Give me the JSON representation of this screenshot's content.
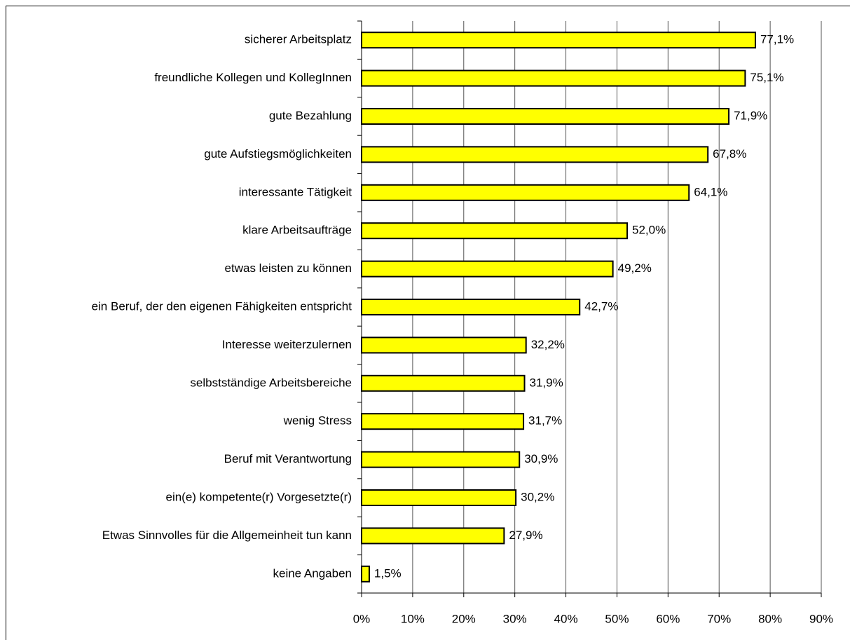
{
  "chart_data": {
    "type": "bar",
    "orientation": "horizontal",
    "categories": [
      "sicherer Arbeitsplatz",
      "freundliche Kollegen und KollegInnen",
      "gute Bezahlung",
      "gute Aufstiegsmöglichkeiten",
      "interessante Tätigkeit",
      "klare Arbeitsaufträge",
      "etwas leisten zu können",
      "ein Beruf, der den eigenen Fähigkeiten entspricht",
      "Interesse weiterzulernen",
      "selbstständige Arbeitsbereiche",
      "wenig Stress",
      "Beruf mit Verantwortung",
      "ein(e) kompetente(r) Vorgesetzte(r)",
      "Etwas Sinnvolles für die Allgemeinheit tun kann",
      "keine Angaben"
    ],
    "values": [
      77.1,
      75.1,
      71.9,
      67.8,
      64.1,
      52.0,
      49.2,
      42.7,
      32.2,
      31.9,
      31.7,
      30.9,
      30.2,
      27.9,
      1.5
    ],
    "value_labels": [
      "77,1%",
      "75,1%",
      "71,9%",
      "67,8%",
      "64,1%",
      "52,0%",
      "49,2%",
      "42,7%",
      "32,2%",
      "31,9%",
      "31,7%",
      "30,9%",
      "30,2%",
      "27,9%",
      "1,5%"
    ],
    "color": "#ffff00",
    "xlim": [
      0,
      90
    ],
    "xticks": [
      {
        "value": 0,
        "label": "0%"
      },
      {
        "value": 10,
        "label": "10%"
      },
      {
        "value": 20,
        "label": "20%"
      },
      {
        "value": 30,
        "label": "30%"
      },
      {
        "value": 40,
        "label": "40%"
      },
      {
        "value": 50,
        "label": "50%"
      },
      {
        "value": 60,
        "label": "60%"
      },
      {
        "value": 70,
        "label": "70%"
      },
      {
        "value": 80,
        "label": "80%"
      },
      {
        "value": 90,
        "label": "90%"
      }
    ],
    "grid": true
  }
}
